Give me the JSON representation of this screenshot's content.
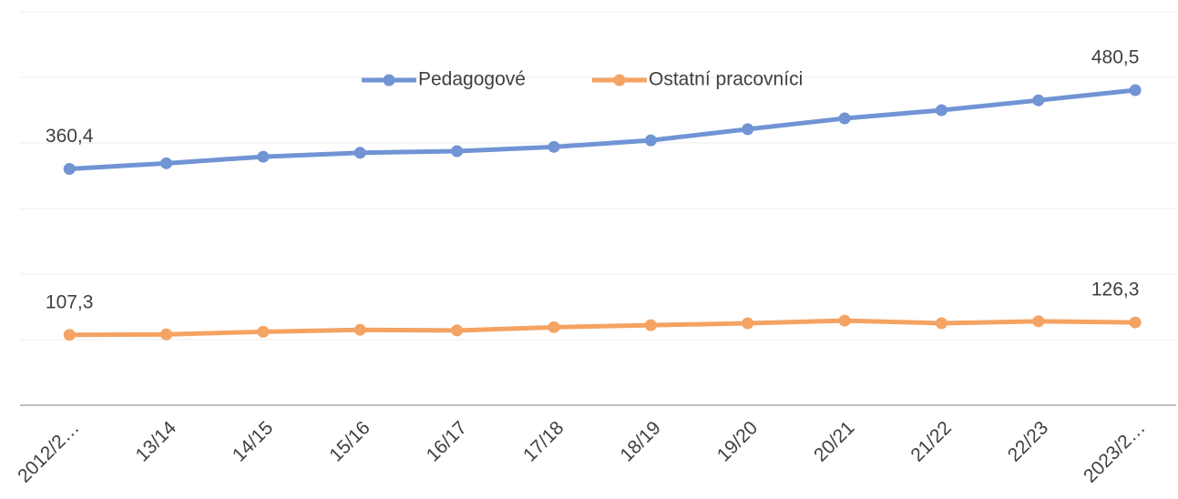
{
  "chart_data": {
    "type": "line",
    "categories": [
      "2012/2…",
      "13/14",
      "14/15",
      "15/16",
      "16/17",
      "17/18",
      "18/19",
      "19/20",
      "20/21",
      "21/22",
      "22/23",
      "2023/2…"
    ],
    "series": [
      {
        "name": "Pedagogové",
        "color": "#7094d4",
        "values": [
          360.4,
          369,
          379,
          385,
          387.5,
          394,
          404,
          421,
          437.5,
          450,
          465,
          480.5
        ],
        "value_labels": [
          "360,4",
          null,
          null,
          null,
          null,
          null,
          null,
          null,
          null,
          null,
          null,
          "480,5"
        ]
      },
      {
        "name": "Ostatní pracovníci",
        "color": "#f4a363",
        "values": [
          107.3,
          108,
          112,
          115,
          114,
          119,
          122,
          125,
          129,
          125,
          128,
          126.3
        ],
        "value_labels": [
          "107,3",
          null,
          null,
          null,
          null,
          null,
          null,
          null,
          null,
          null,
          null,
          "126,3"
        ]
      }
    ],
    "ylim": [
      0,
      600
    ],
    "yticks": [
      0,
      100,
      200,
      300,
      400,
      500,
      600
    ],
    "grid": true,
    "legend": "top"
  }
}
